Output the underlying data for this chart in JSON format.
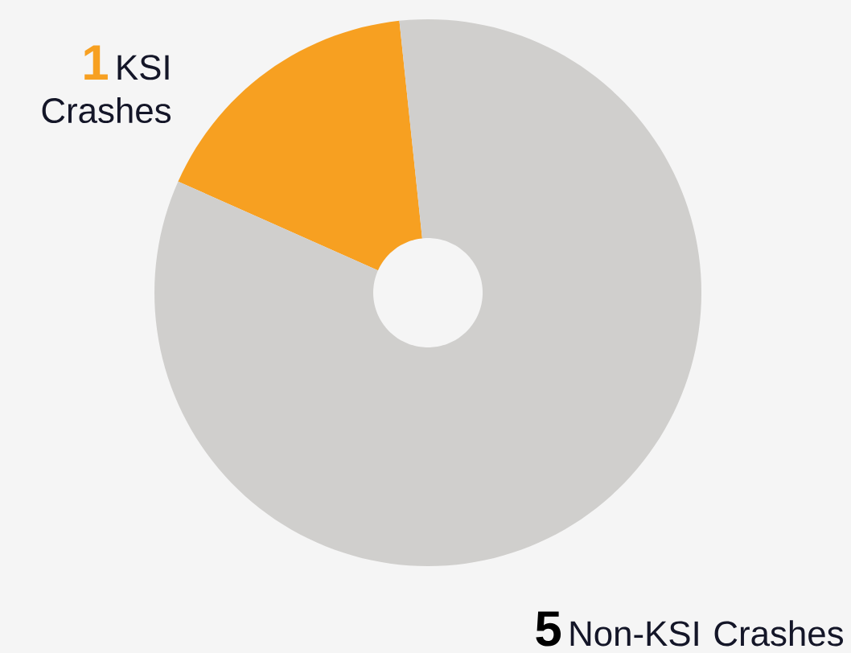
{
  "chart_data": {
    "type": "donut",
    "categories": [
      "KSI Crashes",
      "Non-KSI Crashes"
    ],
    "values": [
      1,
      5
    ],
    "colors": [
      "#f7a021",
      "#d0cfcd"
    ],
    "data_labels": true
  }
}
